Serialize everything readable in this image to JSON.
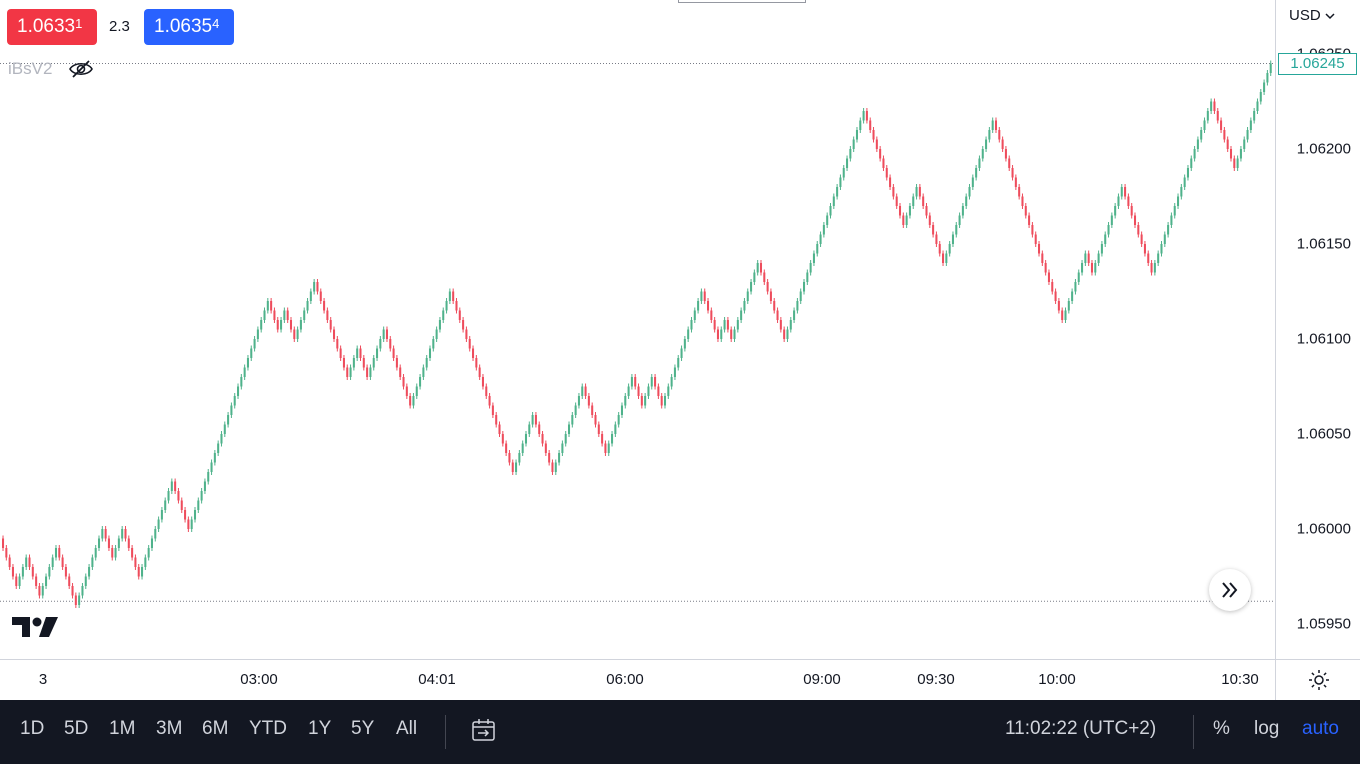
{
  "quote": {
    "bid": "1.0633",
    "bid_sup": "1",
    "spread": "2.3",
    "ask": "1.0635",
    "ask_sup": "4",
    "bid_color": "#f23645",
    "ask_color": "#2962ff"
  },
  "indicator": {
    "name": "iBsV2",
    "icon": "eye-off-icon"
  },
  "currency": "USD",
  "last_price": "1.06245",
  "chart_data": {
    "type": "renko",
    "brick_size": 5e-05,
    "up_color": "#4fb28b",
    "down_color": "#ee4c5c",
    "y_ticks": [
      "1.06250",
      "1.06200",
      "1.06150",
      "1.06100",
      "1.06050",
      "1.06000",
      "1.05950"
    ],
    "x_ticks": [
      "3",
      "03:00",
      "04:01",
      "06:00",
      "09:00",
      "09:30",
      "10:00",
      "10:30"
    ],
    "ylim": [
      1.0592,
      1.06275
    ],
    "close_path": [
      1.05995,
      1.0597,
      1.05985,
      1.05965,
      1.0599,
      1.0596,
      1.06,
      1.05985,
      1.06,
      1.05975,
      1.06025,
      1.06,
      1.0612,
      1.06105,
      1.06115,
      1.061,
      1.0613,
      1.0608,
      1.06095,
      1.0608,
      1.06105,
      1.06065,
      1.06125,
      1.0603,
      1.0606,
      1.0603,
      1.06075,
      1.0604,
      1.0608,
      1.06065,
      1.0608,
      1.06065,
      1.06125,
      1.061,
      1.0611,
      1.061,
      1.0614,
      1.061,
      1.0622,
      1.0616,
      1.0618,
      1.0614,
      1.06215,
      1.0611,
      1.06145,
      1.06135,
      1.0618,
      1.06135,
      1.06225,
      1.0619,
      1.06245
    ],
    "guide_levels": [
      1.06245,
      1.05962
    ]
  },
  "toolbar": {
    "ranges": [
      "1D",
      "5D",
      "1M",
      "3M",
      "6M",
      "YTD",
      "1Y",
      "5Y",
      "All"
    ],
    "clock": "11:02:22 (UTC+2)",
    "percent": "%",
    "log": "log",
    "auto": "auto",
    "auto_color": "#2962ff"
  }
}
